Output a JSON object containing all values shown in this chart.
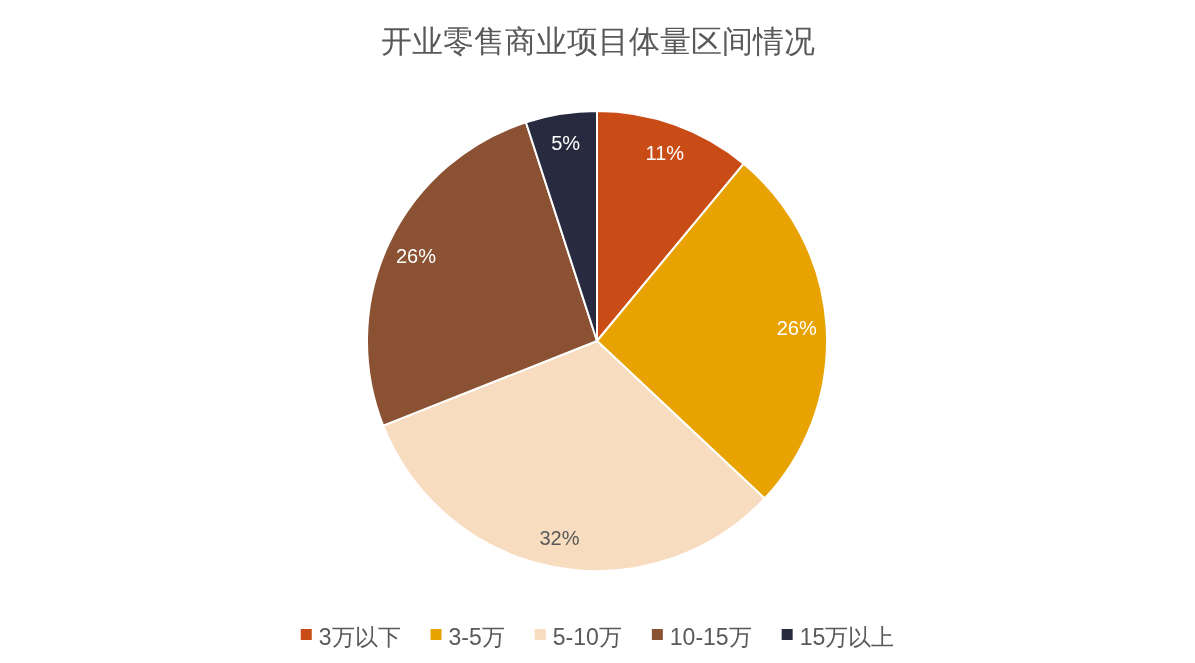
{
  "chart_data": {
    "type": "pie",
    "title": "开业零售商业项目体量区间情况",
    "categories": [
      "3万以下",
      "3-5万",
      "5-10万",
      "10-15万",
      "15万以上"
    ],
    "values": [
      11,
      26,
      32,
      26,
      5
    ],
    "colors": [
      "#c94c16",
      "#e8a202",
      "#f8dcc0",
      "#8a5232",
      "#282b40"
    ],
    "value_labels": [
      "11%",
      "26%",
      "32%",
      "26%",
      "5%"
    ],
    "legend": "bottom"
  }
}
